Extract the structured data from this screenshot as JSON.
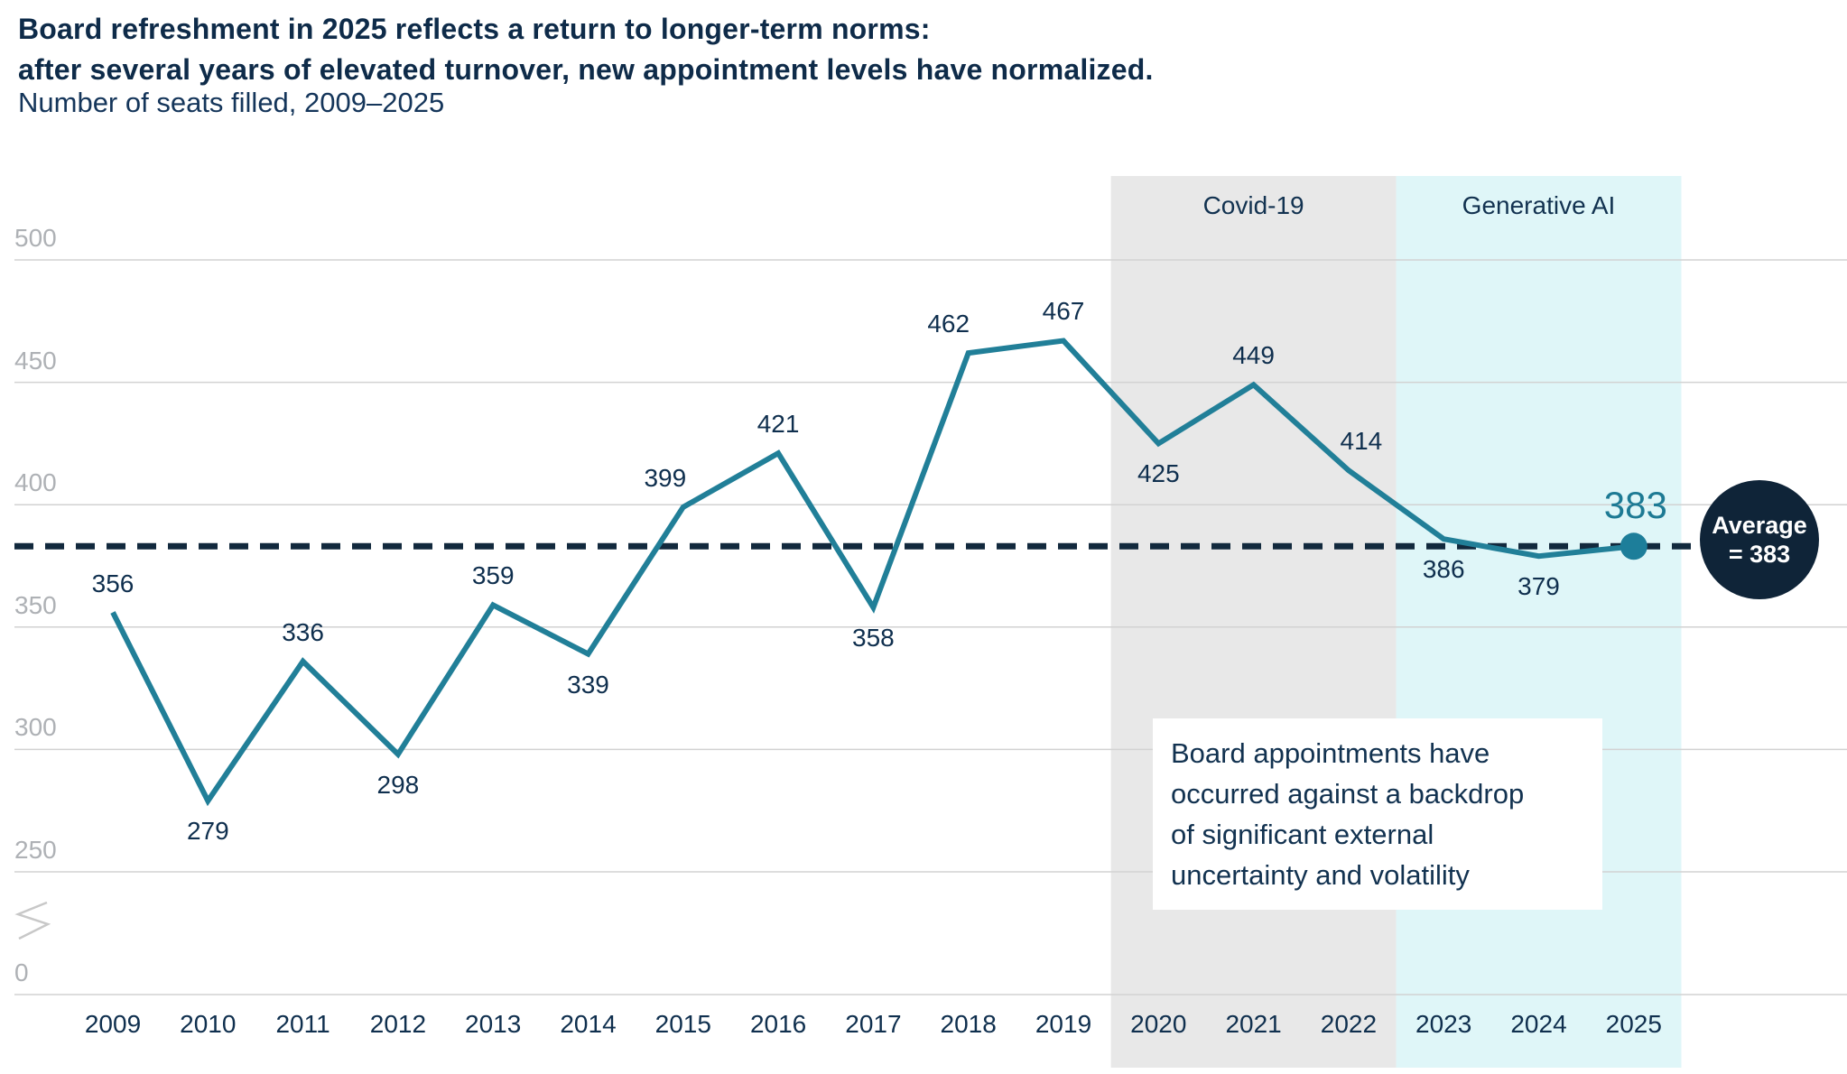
{
  "title_line1": "Board refreshment in 2025 reflects a return to longer-term norms:",
  "title_line2": "after several years of elevated turnover, new appointment levels have normalized.",
  "subtitle": "Number of seats filled, 2009–2025",
  "colors": {
    "series_teal": "#217f98",
    "dot_teal": "#1d7e9a",
    "navy_text": "#0f2d4d",
    "badge_navy": "#0f2438",
    "dashed_navy": "#12293d",
    "covid_band": "#e8e8e8",
    "genai_band": "#dff6f8",
    "gridline": "#d2d2d2",
    "ytick_gray": "#aeb1b5",
    "axis_break_gray": "#c8c8c8"
  },
  "chart_data": {
    "type": "line",
    "title": "Number of seats filled, 2009–2025",
    "categories": [
      "2009",
      "2010",
      "2011",
      "2012",
      "2013",
      "2014",
      "2015",
      "2016",
      "2017",
      "2018",
      "2019",
      "2020",
      "2021",
      "2022",
      "2023",
      "2024",
      "2025"
    ],
    "values": [
      356,
      279,
      336,
      298,
      359,
      339,
      399,
      421,
      358,
      462,
      467,
      425,
      449,
      414,
      386,
      379,
      383
    ],
    "label_placement": [
      "above",
      "below",
      "above",
      "below",
      "above",
      "below",
      "above",
      "above",
      "below",
      "above",
      "above",
      "below",
      "above",
      "above",
      "below",
      "below",
      "callout"
    ],
    "yticks": [
      0,
      250,
      300,
      350,
      400,
      450,
      500
    ],
    "axis_note": "broken y-axis between 0 and 250",
    "grid": "horizontal only",
    "average_line": {
      "value": 383,
      "badge_line1": "Average",
      "badge_line2": "= 383"
    },
    "final_callout": "383",
    "bands": [
      {
        "label": "Covid-19",
        "start": "2020",
        "end": "2022"
      },
      {
        "label": "Generative AI",
        "start": "2023",
        "end": "2025"
      }
    ],
    "annotation_box": {
      "lines": [
        "Board appointments have",
        "occurred against a backdrop",
        "of significant external",
        "uncertainty and volatility"
      ]
    }
  }
}
